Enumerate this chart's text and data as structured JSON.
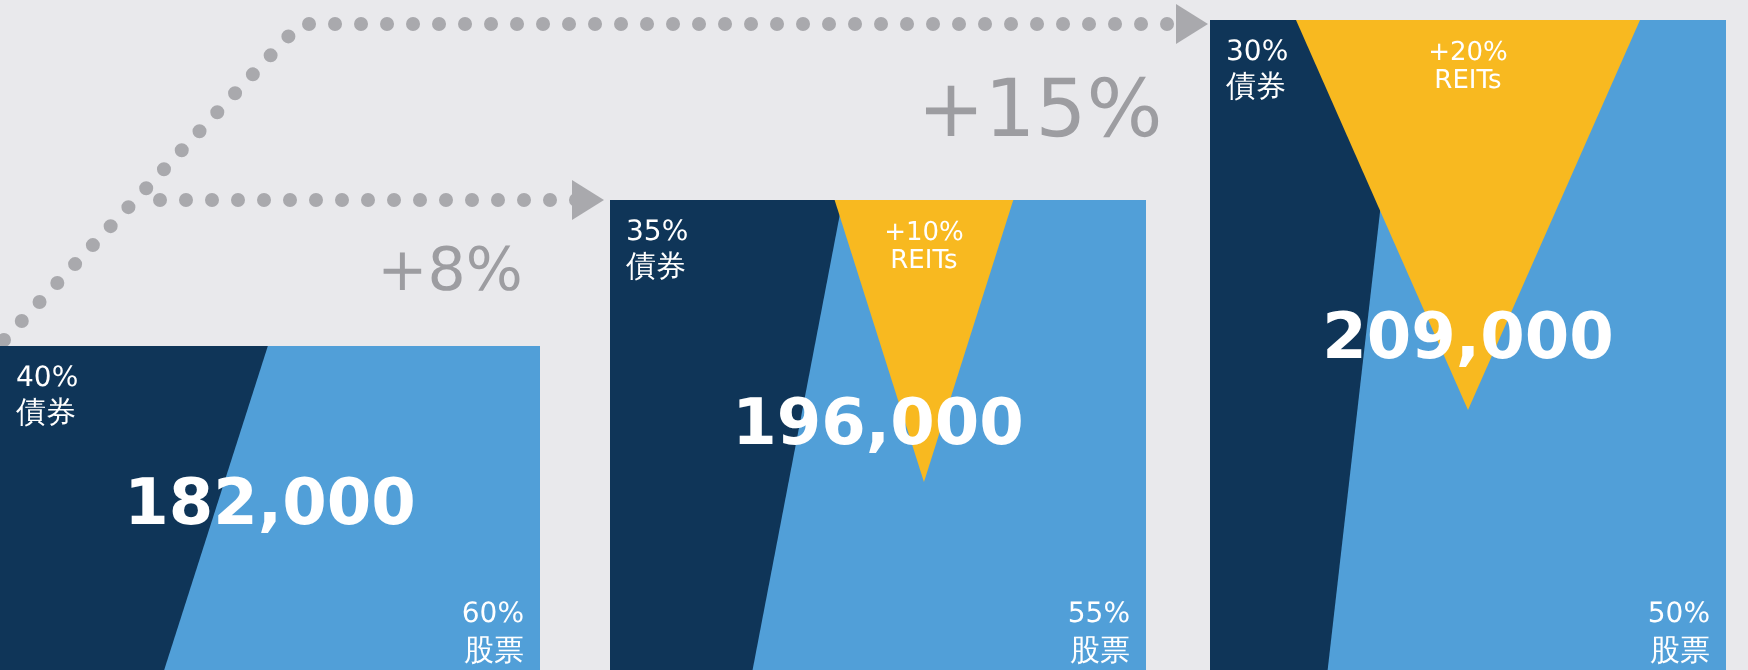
{
  "chart_data": [
    {
      "type": "other",
      "title": "182,000",
      "categories": [
        "債券",
        "股票"
      ],
      "values": [
        40,
        60
      ],
      "value_labels": [
        "40%",
        "60%"
      ],
      "colors": [
        "#0f3558",
        "#519fd8"
      ]
    },
    {
      "type": "other",
      "title": "196,000",
      "categories": [
        "債券",
        "REITs",
        "股票"
      ],
      "values": [
        35,
        10,
        55
      ],
      "value_labels": [
        "35%",
        "+10%",
        "55%"
      ],
      "colors": [
        "#0f3558",
        "#f8b920",
        "#519fd8"
      ],
      "annotations": [
        "+8%"
      ]
    },
    {
      "type": "other",
      "title": "209,000",
      "categories": [
        "債券",
        "REITs",
        "股票"
      ],
      "values": [
        30,
        20,
        50
      ],
      "value_labels": [
        "30%",
        "+20%",
        "50%"
      ],
      "colors": [
        "#0f3558",
        "#f8b920",
        "#519fd8"
      ],
      "annotations": [
        "+15%"
      ]
    }
  ]
}
